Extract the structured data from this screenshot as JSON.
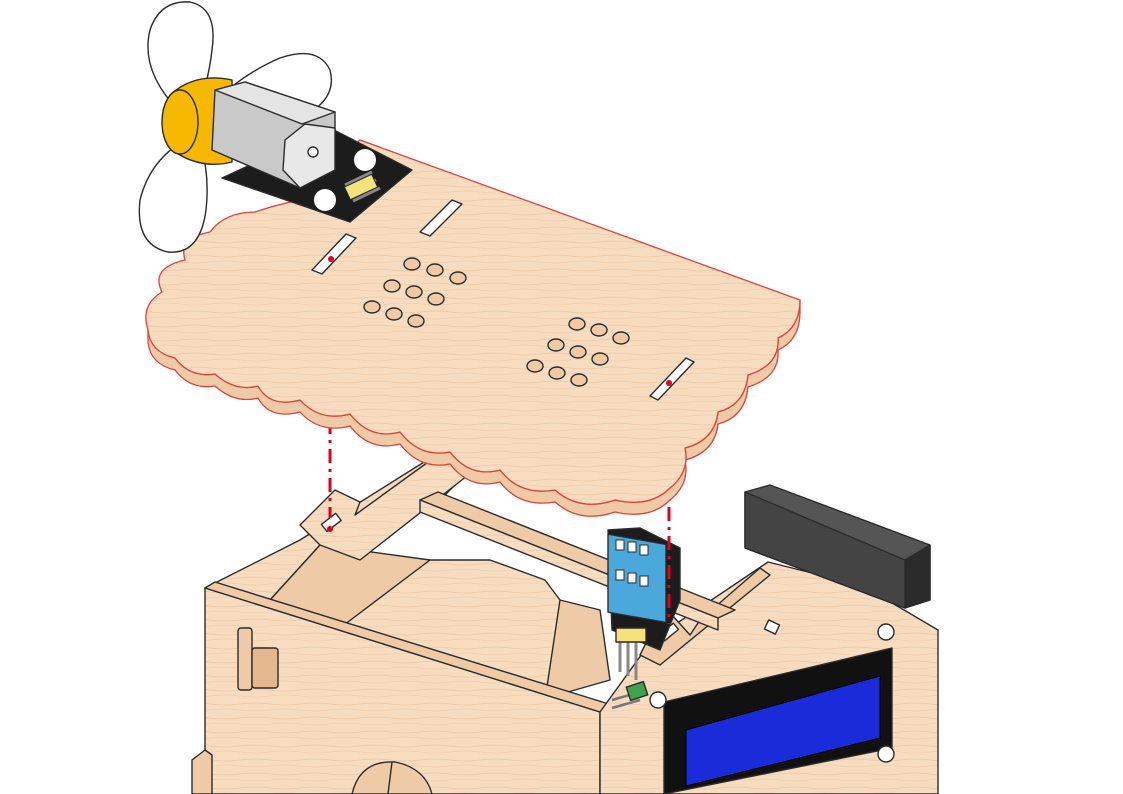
{
  "colors": {
    "wood": "#f7dcc0",
    "wood_shade": "#efcaa7",
    "wood_dark": "#e3b88f",
    "lcd_blue": "#1a2bd9",
    "lcd_frame": "#111111",
    "motor_yellow": "#f6b800",
    "motor_silver": "#c9c9c9",
    "sensor_blue": "#4aa8da",
    "guide_red": "#e0001b",
    "pcb_black": "#1c1c1c"
  },
  "parts": {
    "roof_panel": "scalloped-roof-panel",
    "fan_module": "motor-fan-module",
    "house_body": "wooden-house-body",
    "lcd_display": "lcd-1602-display",
    "temp_sensor": "temperature-humidity-sensor"
  }
}
